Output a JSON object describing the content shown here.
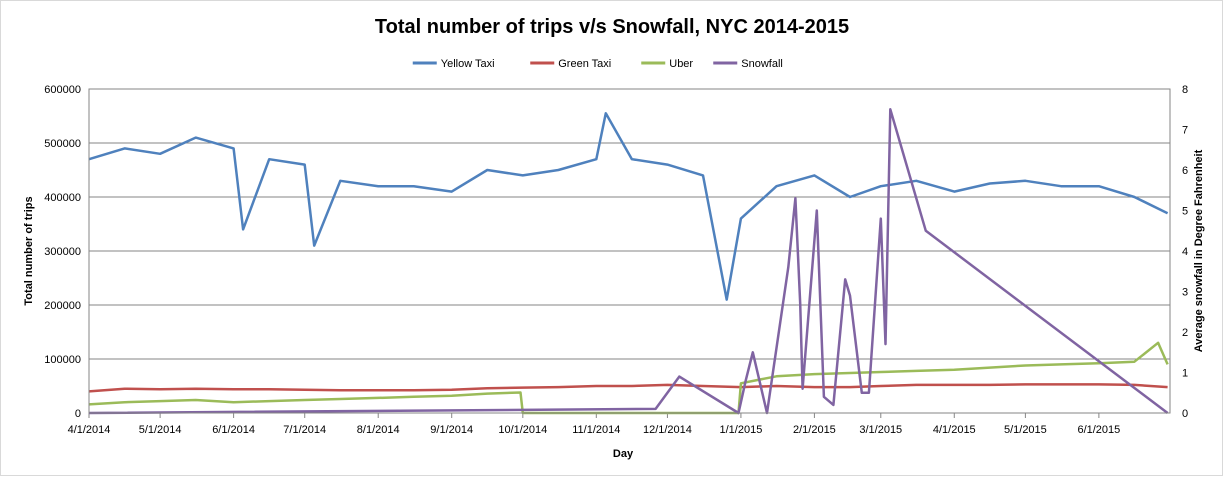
{
  "chart_data": {
    "type": "line",
    "title": "Total number of trips v/s Snowfall, NYC 2014-2015",
    "xlabel": "Day",
    "ylabel": "Total number of trips",
    "y2label": "Average snowfall  in Degree Fahrenheit",
    "ylim": [
      0,
      600000
    ],
    "y2lim": [
      0,
      8
    ],
    "yticks": [
      "0",
      "100000",
      "200000",
      "300000",
      "400000",
      "500000",
      "600000"
    ],
    "y2ticks": [
      "0",
      "1",
      "2",
      "3",
      "4",
      "5",
      "6",
      "7",
      "8"
    ],
    "xticks": [
      "4/1/2014",
      "5/1/2014",
      "6/1/2014",
      "7/1/2014",
      "8/1/2014",
      "9/1/2014",
      "10/1/2014",
      "11/1/2014",
      "12/1/2014",
      "1/1/2015",
      "2/1/2015",
      "3/1/2015",
      "4/1/2015",
      "5/1/2015",
      "6/1/2015"
    ],
    "xlim": [
      "4/1/2014",
      "6/30/2015"
    ],
    "grid": true,
    "legend_position": "top",
    "series": [
      {
        "name": "Yellow Taxi",
        "color": "#4f81bd",
        "axis": "left",
        "x": [
          "4/1/2014",
          "4/16/2014",
          "5/1/2014",
          "5/16/2014",
          "6/1/2014",
          "6/5/2014",
          "6/16/2014",
          "7/1/2014",
          "7/5/2014",
          "7/16/2014",
          "8/1/2014",
          "8/16/2014",
          "9/1/2014",
          "9/16/2014",
          "10/1/2014",
          "10/16/2014",
          "11/1/2014",
          "11/5/2014",
          "11/16/2014",
          "12/1/2014",
          "12/16/2014",
          "12/26/2014",
          "1/1/2015",
          "1/16/2015",
          "2/1/2015",
          "2/16/2015",
          "3/1/2015",
          "3/16/2015",
          "4/1/2015",
          "4/16/2015",
          "5/1/2015",
          "5/16/2015",
          "6/1/2015",
          "6/16/2015",
          "6/30/2015"
        ],
        "values": [
          470000,
          490000,
          480000,
          510000,
          490000,
          340000,
          470000,
          460000,
          310000,
          430000,
          420000,
          420000,
          410000,
          450000,
          440000,
          450000,
          470000,
          555000,
          470000,
          460000,
          440000,
          210000,
          360000,
          420000,
          440000,
          400000,
          420000,
          430000,
          410000,
          425000,
          430000,
          420000,
          420000,
          400000,
          370000
        ]
      },
      {
        "name": "Green Taxi",
        "color": "#c0504d",
        "axis": "left",
        "x": [
          "4/1/2014",
          "4/16/2014",
          "5/1/2014",
          "5/16/2014",
          "6/1/2014",
          "6/16/2014",
          "7/1/2014",
          "7/16/2014",
          "8/1/2014",
          "8/16/2014",
          "9/1/2014",
          "9/16/2014",
          "10/1/2014",
          "10/16/2014",
          "11/1/2014",
          "11/16/2014",
          "12/1/2014",
          "12/16/2014",
          "1/1/2015",
          "1/16/2015",
          "2/1/2015",
          "2/16/2015",
          "3/1/2015",
          "3/16/2015",
          "4/1/2015",
          "4/16/2015",
          "5/1/2015",
          "5/16/2015",
          "6/1/2015",
          "6/16/2015",
          "6/30/2015"
        ],
        "values": [
          40000,
          45000,
          44000,
          45000,
          44000,
          44000,
          43000,
          42000,
          42000,
          42000,
          43000,
          46000,
          47000,
          48000,
          50000,
          50000,
          52000,
          50000,
          48000,
          50000,
          48000,
          48000,
          50000,
          52000,
          52000,
          52000,
          53000,
          53000,
          53000,
          52000,
          48000
        ]
      },
      {
        "name": "Uber",
        "color": "#9bbb59",
        "axis": "left",
        "x": [
          "4/1/2014",
          "4/16/2014",
          "5/1/2014",
          "5/16/2014",
          "6/1/2014",
          "6/16/2014",
          "7/1/2014",
          "7/16/2014",
          "8/1/2014",
          "8/16/2014",
          "9/1/2014",
          "9/16/2014",
          "9/30/2014",
          "10/1/2014",
          "12/31/2014",
          "1/1/2015",
          "1/16/2015",
          "2/1/2015",
          "2/16/2015",
          "3/1/2015",
          "3/16/2015",
          "4/1/2015",
          "4/16/2015",
          "5/1/2015",
          "5/16/2015",
          "6/1/2015",
          "6/16/2015",
          "6/26/2015",
          "6/30/2015"
        ],
        "values": [
          16000,
          20000,
          22000,
          24000,
          20000,
          22000,
          24000,
          26000,
          28000,
          30000,
          32000,
          36000,
          38000,
          0,
          0,
          55000,
          68000,
          72000,
          74000,
          76000,
          78000,
          80000,
          84000,
          88000,
          90000,
          92000,
          95000,
          130000,
          90000
        ]
      },
      {
        "name": "Snowfall",
        "color": "#8064a2",
        "axis": "right",
        "x": [
          "4/1/2014",
          "11/26/2014",
          "12/6/2014",
          "12/31/2014",
          "1/3/2015",
          "1/6/2015",
          "1/12/2015",
          "1/21/2015",
          "1/24/2015",
          "1/26/2015",
          "1/27/2015",
          "2/2/2015",
          "2/5/2015",
          "2/9/2015",
          "2/14/2015",
          "2/16/2015",
          "2/21/2015",
          "2/24/2015",
          "3/1/2015",
          "3/3/2015",
          "3/5/2015",
          "3/20/2015",
          "6/30/2015"
        ],
        "values": [
          0,
          0.1,
          0.9,
          0,
          0.8,
          1.5,
          0,
          3.6,
          5.3,
          2.7,
          0.6,
          5.0,
          0.4,
          0.2,
          3.3,
          2.9,
          0.5,
          0.5,
          4.8,
          1.7,
          7.5,
          4.5,
          0
        ]
      }
    ]
  }
}
